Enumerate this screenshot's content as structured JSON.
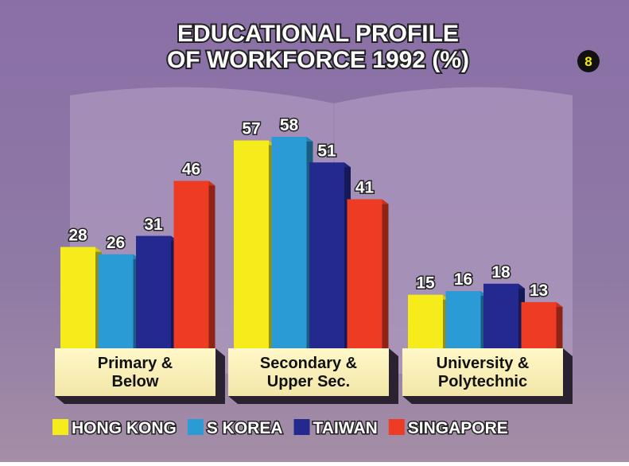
{
  "chart_data": {
    "type": "bar",
    "title": "EDUCATIONAL PROFILE\nOF WORKFORCE 1992 (%)",
    "badge": "8",
    "categories": [
      "Primary &\nBelow",
      "Secondary &\nUpper Sec.",
      "University &\nPolytechnic"
    ],
    "series": [
      {
        "name": "HONG KONG",
        "color": "#f6ec1c",
        "values": [
          28,
          57,
          15
        ]
      },
      {
        "name": "S KOREA",
        "color": "#2b9bd6",
        "values": [
          26,
          58,
          16
        ]
      },
      {
        "name": "TAIWAN",
        "color": "#23298f",
        "values": [
          31,
          51,
          18
        ]
      },
      {
        "name": "SINGAPORE",
        "color": "#ee3b24",
        "values": [
          46,
          41,
          13
        ]
      }
    ]
  }
}
